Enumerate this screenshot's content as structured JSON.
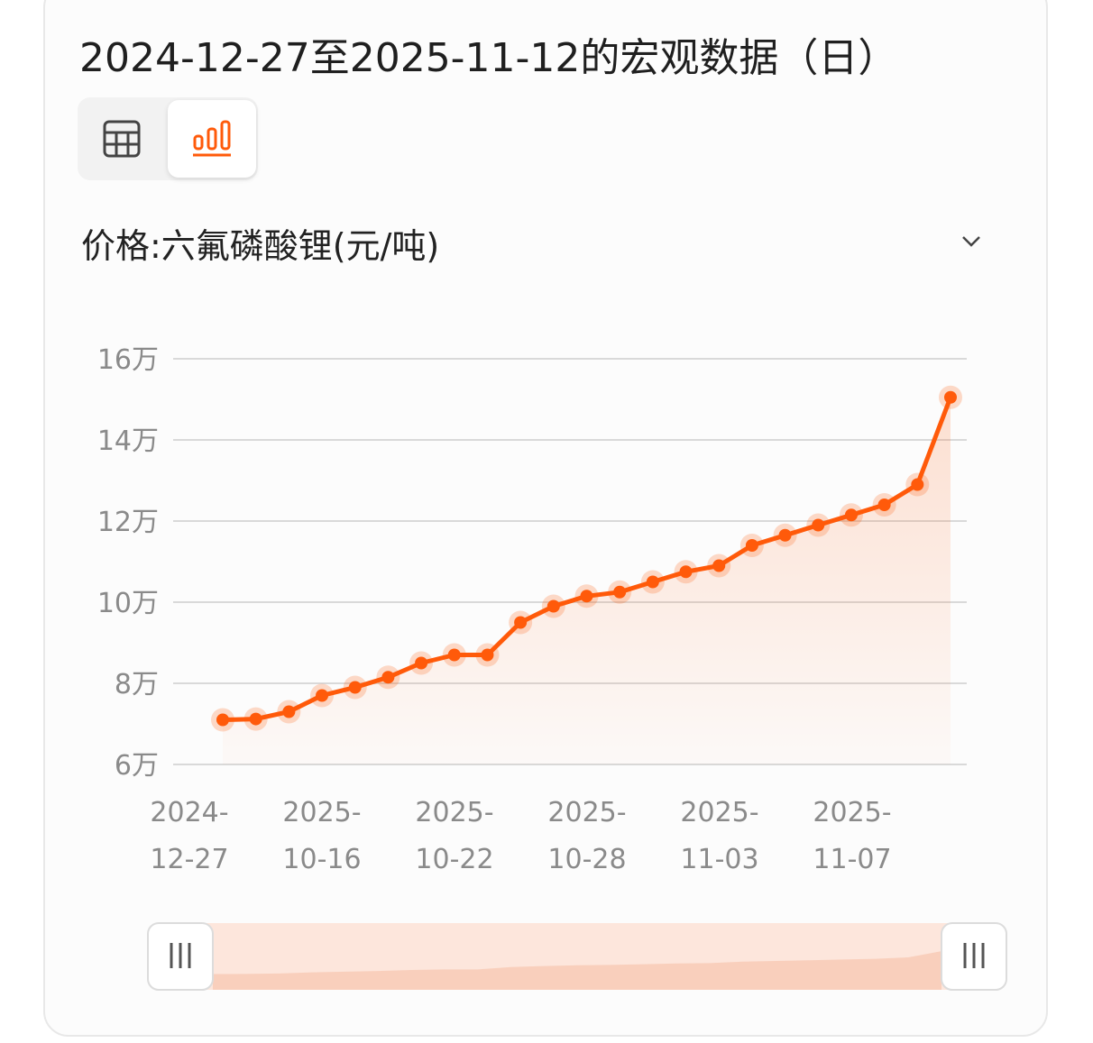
{
  "header": {
    "title": "2024-12-27至2025-11-12的宏观数据（日）"
  },
  "view_switch": {
    "table_icon": "table-icon",
    "chart_icon": "bar-chart-icon",
    "active": "chart"
  },
  "indicator": {
    "label": "价格:六氟磷酸锂(元/吨)",
    "dropdown_icon": "chevron-down-icon"
  },
  "colors": {
    "accent": "#ff5a0a",
    "grid": "#d9d9d9",
    "axis_text": "#8a8a8a"
  },
  "chart_data": {
    "type": "line",
    "ylim": [
      60000,
      160000
    ],
    "y_ticks": [
      60000,
      80000,
      100000,
      120000,
      140000,
      160000
    ],
    "y_tick_labels": [
      "6万",
      "8万",
      "10万",
      "12万",
      "14万",
      "16万"
    ],
    "x_tick_labels": [
      [
        "2024-",
        "12-27"
      ],
      [
        "2025-",
        "10-16"
      ],
      [
        "2025-",
        "10-22"
      ],
      [
        "2025-",
        "10-28"
      ],
      [
        "2025-",
        "11-03"
      ],
      [
        "2025-",
        "11-07"
      ]
    ],
    "x_tick_index": [
      0,
      4,
      8,
      12,
      16,
      20
    ],
    "grid": true,
    "series": [
      {
        "values": [
          71000,
          71200,
          73000,
          77000,
          79000,
          81500,
          85000,
          87000,
          87000,
          95000,
          99000,
          101500,
          102500,
          105000,
          107500,
          109000,
          114000,
          116500,
          119000,
          121500,
          124000,
          129000,
          150500
        ]
      }
    ],
    "zoom_slider": {
      "start": 0,
      "end": 100
    }
  }
}
